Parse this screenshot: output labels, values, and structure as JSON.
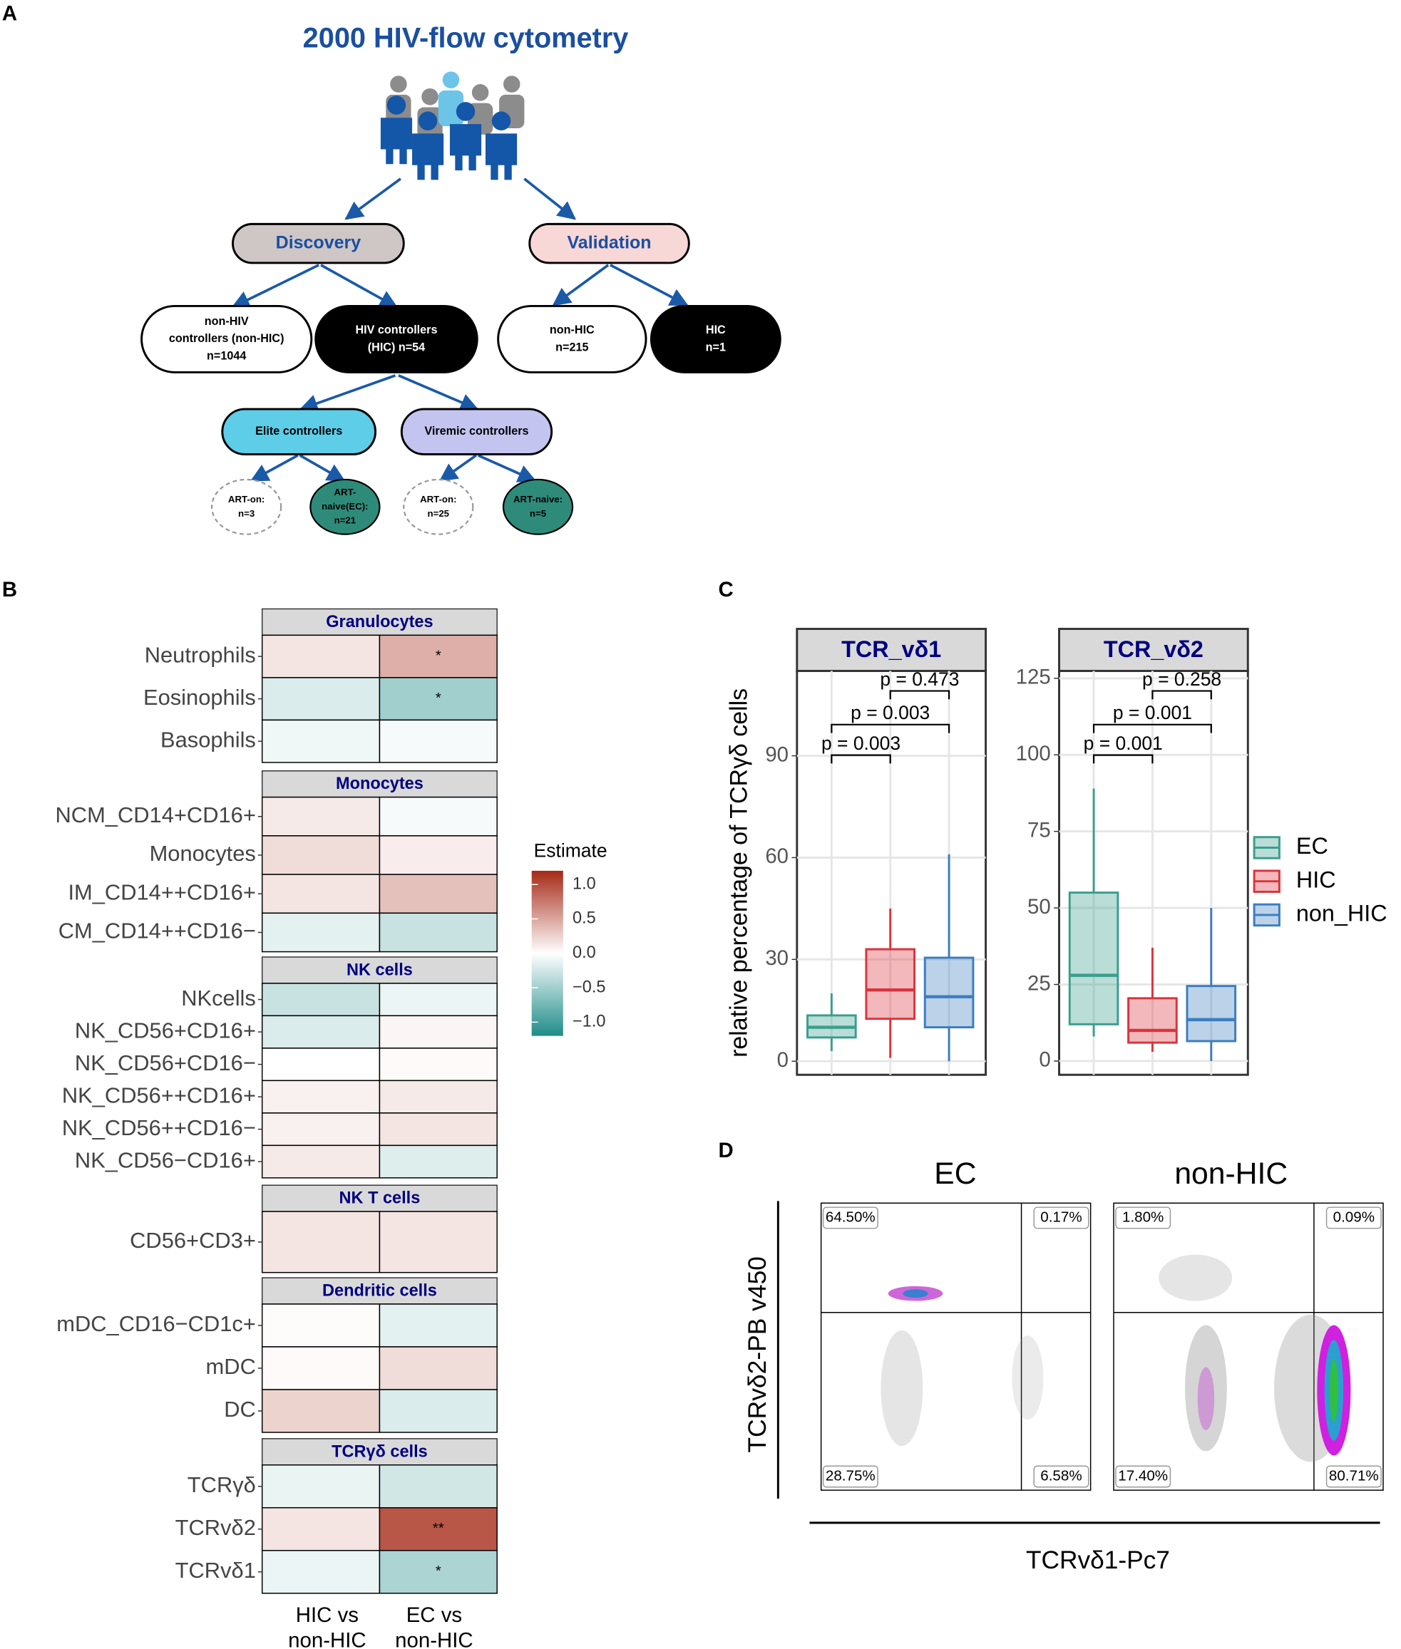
{
  "panel_labels": [
    "A",
    "B",
    "C",
    "D"
  ],
  "panel_a": {
    "title": "2000 HIV-flow cytometry",
    "nodes": [
      {
        "lines": [
          "Discovery"
        ]
      },
      {
        "lines": [
          "Validation"
        ]
      },
      {
        "lines": [
          "non-HIV",
          "controllers (non-HIC)",
          "n=1044"
        ]
      },
      {
        "lines": [
          "HIV  controllers",
          "(HIC) n=54"
        ]
      },
      {
        "lines": [
          "non-HIC",
          "n=215"
        ]
      },
      {
        "lines": [
          "HIC",
          "n=1"
        ]
      },
      {
        "lines": [
          "Elite controllers"
        ]
      },
      {
        "lines": [
          "Viremic controllers"
        ]
      },
      {
        "lines": [
          "ART-on:",
          "n=3"
        ]
      },
      {
        "lines": [
          "ART-",
          "naive(EC):",
          "n=21"
        ]
      },
      {
        "lines": [
          "ART-on:",
          "n=25"
        ]
      },
      {
        "lines": [
          "ART-naive:",
          "n=5"
        ]
      }
    ]
  },
  "panel_b": {
    "columns": [
      [
        "HIC vs",
        "non-HIC"
      ],
      [
        "EC vs",
        "non-HIC"
      ]
    ],
    "legend_title": "Estimate",
    "limits": [
      -1.2,
      1.2
    ],
    "legend_ticks": [
      {
        "value": 1,
        "label": "1.0"
      },
      {
        "value": 0.5,
        "label": "0.5"
      },
      {
        "value": 0,
        "label": "0.0"
      },
      {
        "value": -0.5,
        "label": "−0.5"
      },
      {
        "value": -1,
        "label": "−1.0"
      }
    ],
    "groups": [
      {
        "name": "Granulocytes",
        "rows": [
          {
            "label": "Neutrophils",
            "values": [
              0.15,
              0.45
            ],
            "stars": [
              null,
              "*"
            ]
          },
          {
            "label": "Eosinophils",
            "values": [
              -0.2,
              -0.5
            ],
            "stars": [
              null,
              "*"
            ]
          },
          {
            "label": "Basophils",
            "values": [
              -0.08,
              -0.05
            ],
            "stars": [
              null,
              null
            ]
          }
        ]
      },
      {
        "name": "Monocytes",
        "rows": [
          {
            "label": "NCM_CD14+CD16+",
            "values": [
              0.12,
              -0.05
            ],
            "stars": [
              null,
              null
            ]
          },
          {
            "label": "Monocytes",
            "values": [
              0.2,
              0.1
            ],
            "stars": [
              null,
              null
            ]
          },
          {
            "label": "IM_CD14++CD16+",
            "values": [
              0.15,
              0.35
            ],
            "stars": [
              null,
              null
            ]
          },
          {
            "label": "CM_CD14++CD16−",
            "values": [
              -0.15,
              -0.3
            ],
            "stars": [
              null,
              null
            ]
          }
        ]
      },
      {
        "name": "NK cells",
        "rows": [
          {
            "label": "NKcells",
            "values": [
              -0.3,
              -0.1
            ],
            "stars": [
              null,
              null
            ]
          },
          {
            "label": "NK_CD56+CD16+",
            "values": [
              -0.2,
              0.05
            ],
            "stars": [
              null,
              null
            ]
          },
          {
            "label": "NK_CD56+CD16−",
            "values": [
              0,
              0.03
            ],
            "stars": [
              null,
              null
            ]
          },
          {
            "label": "NK_CD56++CD16+",
            "values": [
              0.08,
              0.12
            ],
            "stars": [
              null,
              null
            ]
          },
          {
            "label": "NK_CD56++CD16−",
            "values": [
              0.08,
              0.15
            ],
            "stars": [
              null,
              null
            ]
          },
          {
            "label": "NK_CD56−CD16+",
            "values": [
              0.12,
              -0.18
            ],
            "stars": [
              null,
              null
            ]
          }
        ]
      },
      {
        "name": "NK T cells",
        "rows": [
          {
            "label": "CD56+CD3+",
            "values": [
              0.15,
              0.15
            ],
            "stars": [
              null,
              null
            ]
          }
        ]
      },
      {
        "name": "Dendritic cells",
        "rows": [
          {
            "label": "mDC_CD16−CD1c+",
            "values": [
              0.02,
              -0.15
            ],
            "stars": [
              null,
              null
            ]
          },
          {
            "label": "mDC",
            "values": [
              0.03,
              0.2
            ],
            "stars": [
              null,
              null
            ]
          },
          {
            "label": "DC",
            "values": [
              0.25,
              -0.2
            ],
            "stars": [
              null,
              null
            ]
          }
        ]
      },
      {
        "name": "TCRγδ cells",
        "rows": [
          {
            "label": "TCRγδ",
            "values": [
              -0.12,
              -0.25
            ],
            "stars": [
              null,
              null
            ]
          },
          {
            "label": "TCRvδ2",
            "values": [
              0.15,
              0.95
            ],
            "stars": [
              null,
              "**"
            ]
          },
          {
            "label": "TCRvδ1",
            "values": [
              -0.1,
              -0.45
            ],
            "stars": [
              null,
              "*"
            ]
          }
        ]
      }
    ]
  },
  "panel_c": {
    "ylabel": "relative percentage of TCRγδ cells",
    "groups": [
      {
        "name": "EC",
        "color": "#3a9e8c"
      },
      {
        "name": "HIC",
        "color": "#d9343c"
      },
      {
        "name": "non_HIC",
        "color": "#3b7dbf"
      }
    ],
    "facets": [
      {
        "title": "TCR_vδ1",
        "ylim": [
          -4,
          115
        ],
        "yticks": [
          0,
          30,
          60,
          90
        ],
        "boxes": [
          {
            "q1": 7,
            "median": 10,
            "q3": 13.5,
            "whislo": 3,
            "whishi": 20
          },
          {
            "q1": 12.5,
            "median": 21,
            "q3": 33,
            "whislo": 1,
            "whishi": 45
          },
          {
            "q1": 10,
            "median": 19,
            "q3": 30.5,
            "whislo": 0,
            "whishi": 61
          }
        ],
        "pvalues": [
          "p = 0.003",
          "p = 0.003",
          "p = 0.473"
        ]
      },
      {
        "title": "TCR_vδ2",
        "ylim": [
          -4.5,
          127.4
        ],
        "yticks": [
          0,
          25,
          50,
          75,
          100,
          125
        ],
        "boxes": [
          {
            "q1": 12,
            "median": 28,
            "q3": 55,
            "whislo": 8,
            "whishi": 89
          },
          {
            "q1": 6,
            "median": 10,
            "q3": 20.5,
            "whislo": 3,
            "whishi": 37
          },
          {
            "q1": 6.5,
            "median": 13.5,
            "q3": 24.5,
            "whislo": 0,
            "whishi": 50
          }
        ],
        "pvalues": [
          "p = 0.001",
          "p = 0.001",
          "p = 0.258"
        ]
      }
    ]
  },
  "panel_d": {
    "xlabel": "TCRvδ1-Pc7",
    "ylabel": "TCRvδ2-PB v450",
    "plots": [
      {
        "title": "EC",
        "quadrants": [
          "64.50%",
          "0.17%",
          "28.75%",
          "6.58%"
        ]
      },
      {
        "title": "non-HIC",
        "quadrants": [
          "1.80%",
          "0.09%",
          "17.40%",
          "80.71%"
        ]
      }
    ]
  }
}
